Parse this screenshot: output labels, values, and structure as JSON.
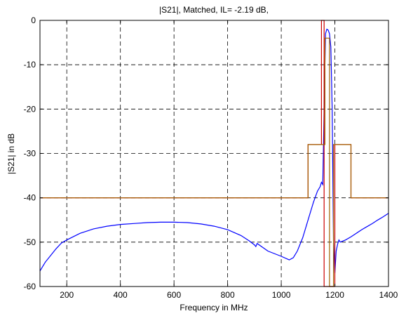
{
  "chart_data": {
    "type": "line",
    "title": "|S21|, Matched, IL= -2.19 dB,",
    "xlabel": "Frequency in MHz",
    "ylabel": "|S21| in dB",
    "xlim": [
      100,
      1400
    ],
    "ylim": [
      -60,
      0
    ],
    "xticks": [
      200,
      400,
      600,
      800,
      1000,
      1200,
      1400
    ],
    "yticks": [
      0,
      -10,
      -20,
      -30,
      -40,
      -50,
      -60
    ],
    "grid": true,
    "grid_style": "dashed",
    "series": [
      {
        "color": "#0000ff",
        "x": [
          100,
          110,
          120,
          140,
          160,
          180,
          200,
          250,
          300,
          350,
          400,
          450,
          500,
          550,
          600,
          650,
          700,
          750,
          800,
          850,
          880,
          900,
          905,
          910,
          950,
          1000,
          1030,
          1045,
          1060,
          1080,
          1100,
          1120,
          1135,
          1145,
          1150,
          1155,
          1160,
          1165,
          1170,
          1175,
          1180,
          1185,
          1190,
          1195,
          1200,
          1205,
          1210,
          1215,
          1220,
          1240,
          1260,
          1280,
          1300,
          1320,
          1340,
          1360,
          1380,
          1400
        ],
        "y": [
          -56.5,
          -55.5,
          -54.5,
          -53.0,
          -51.5,
          -50.2,
          -49.5,
          -48.0,
          -47.0,
          -46.4,
          -46.0,
          -45.8,
          -45.6,
          -45.5,
          -45.5,
          -45.6,
          -45.9,
          -46.4,
          -47.2,
          -48.5,
          -49.7,
          -50.6,
          -51.0,
          -50.3,
          -52.0,
          -53.2,
          -54.0,
          -53.5,
          -52.0,
          -49.0,
          -45.0,
          -41.0,
          -38.5,
          -37.5,
          -36.5,
          -37.0,
          -20.0,
          -3.0,
          -2.0,
          -2.2,
          -3.0,
          -6.0,
          -20.0,
          -50.0,
          -57.0,
          -52.0,
          -50.5,
          -49.5,
          -50.0,
          -49.5,
          -48.8,
          -48.0,
          -47.2,
          -46.5,
          -45.8,
          -45.0,
          -44.3,
          -43.5
        ]
      },
      {
        "color": "#cc0000",
        "x": [
          100,
          1100,
          1100,
          1150,
          1150,
          1160,
          1160,
          1200,
          1200,
          1260,
          1260,
          1400
        ],
        "y": [
          -40,
          -40,
          -28,
          -28,
          0,
          0,
          -60,
          -60,
          -28,
          -28,
          -40,
          -40
        ]
      },
      {
        "color": "#a06000",
        "x": [
          100,
          1100,
          1100,
          1163,
          1163,
          1180,
          1180,
          1195,
          1195,
          1260,
          1260,
          1400
        ],
        "y": [
          -40,
          -40,
          -28,
          -28,
          -4,
          -4,
          -60,
          -60,
          -28,
          -28,
          -40,
          -40
        ]
      }
    ]
  }
}
